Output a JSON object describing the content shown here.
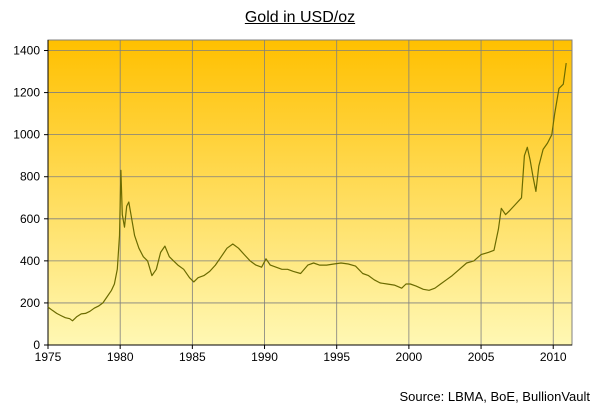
{
  "chart_data": {
    "type": "line",
    "title": "Gold in USD/oz",
    "xlabel": "",
    "ylabel": "",
    "xlim": [
      1975,
      2011.3
    ],
    "ylim": [
      0,
      1450
    ],
    "xticks": [
      "1975",
      "1980",
      "1985",
      "1990",
      "1995",
      "2000",
      "2005",
      "2010"
    ],
    "yticks": [
      "0",
      "200",
      "400",
      "600",
      "800",
      "1000",
      "1200",
      "1400"
    ],
    "grid": true,
    "legend": "none",
    "series": [
      {
        "line_color": "#6b6b00",
        "x": [
          1975.0,
          1975.3,
          1975.6,
          1975.9,
          1976.2,
          1976.5,
          1976.7,
          1977.0,
          1977.3,
          1977.6,
          1977.9,
          1978.2,
          1978.5,
          1978.8,
          1979.1,
          1979.4,
          1979.6,
          1979.8,
          1979.95,
          1980.05,
          1980.15,
          1980.3,
          1980.45,
          1980.6,
          1980.8,
          1981.0,
          1981.3,
          1981.6,
          1981.9,
          1982.2,
          1982.5,
          1982.8,
          1983.1,
          1983.4,
          1983.7,
          1984.0,
          1984.4,
          1984.8,
          1985.1,
          1985.4,
          1985.8,
          1986.2,
          1986.6,
          1987.0,
          1987.4,
          1987.8,
          1988.2,
          1988.6,
          1989.0,
          1989.4,
          1989.8,
          1990.1,
          1990.4,
          1990.8,
          1991.2,
          1991.6,
          1992.0,
          1992.5,
          1993.0,
          1993.4,
          1993.8,
          1994.3,
          1994.8,
          1995.3,
          1995.8,
          1996.3,
          1996.8,
          1997.2,
          1997.6,
          1998.0,
          1998.5,
          1999.0,
          1999.5,
          1999.8,
          2000.1,
          2000.5,
          2001.0,
          2001.4,
          2001.8,
          2002.2,
          2002.6,
          2003.0,
          2003.5,
          2004.0,
          2004.5,
          2005.0,
          2005.5,
          2005.9,
          2006.2,
          2006.4,
          2006.7,
          2007.0,
          2007.4,
          2007.8,
          2008.0,
          2008.2,
          2008.4,
          2008.6,
          2008.8,
          2009.0,
          2009.3,
          2009.6,
          2009.9,
          2010.1,
          2010.4,
          2010.7,
          2010.9
        ],
        "y": [
          180,
          165,
          150,
          140,
          130,
          125,
          115,
          135,
          148,
          150,
          160,
          175,
          185,
          200,
          230,
          260,
          290,
          360,
          520,
          830,
          620,
          560,
          660,
          680,
          600,
          520,
          460,
          420,
          400,
          330,
          360,
          440,
          470,
          420,
          400,
          380,
          360,
          320,
          300,
          320,
          330,
          350,
          380,
          420,
          460,
          480,
          460,
          430,
          400,
          380,
          370,
          410,
          380,
          370,
          360,
          360,
          350,
          340,
          380,
          390,
          380,
          380,
          385,
          390,
          385,
          375,
          340,
          330,
          310,
          295,
          290,
          285,
          270,
          290,
          290,
          280,
          265,
          260,
          270,
          290,
          310,
          330,
          360,
          390,
          400,
          430,
          440,
          450,
          550,
          650,
          620,
          640,
          670,
          700,
          900,
          940,
          880,
          800,
          730,
          850,
          930,
          960,
          1000,
          1100,
          1220,
          1240,
          1340
        ]
      }
    ]
  },
  "source_note": "Source: LBMA, BoE, BullionVault"
}
